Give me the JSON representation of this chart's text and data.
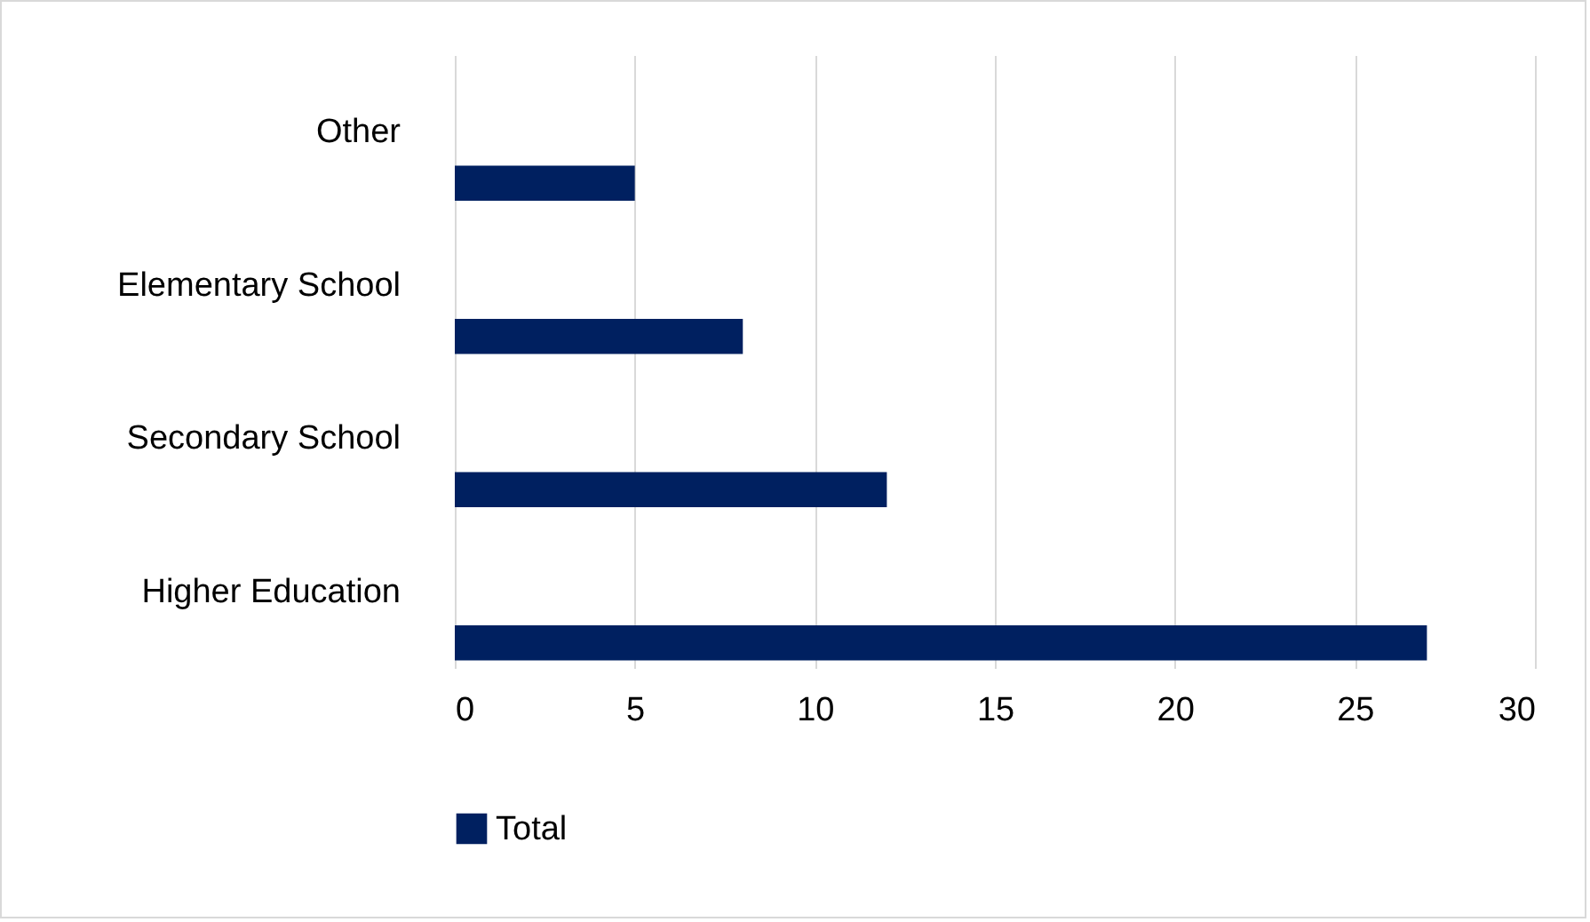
{
  "chart_data": {
    "type": "bar",
    "orientation": "horizontal",
    "categories": [
      "Other",
      "Elementary School",
      "Secondary School",
      "Higher Education"
    ],
    "series": [
      {
        "name": "Total",
        "color": "#002060",
        "values": [
          5,
          8,
          12,
          27
        ]
      }
    ],
    "xlim": [
      0,
      30
    ],
    "xticks": [
      0,
      5,
      10,
      15,
      20,
      25,
      30
    ],
    "grid": "x",
    "legend": "bottom"
  }
}
